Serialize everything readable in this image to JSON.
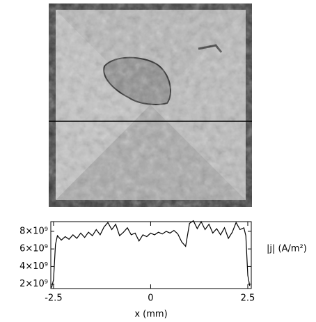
{
  "chart_data": {
    "type": "line",
    "xlabel": "x (mm)",
    "ylabel": "|j| (A/m²)",
    "x": [
      -2.55,
      -2.5,
      -2.45,
      -2.4,
      -2.3,
      -2.2,
      -2.1,
      -2.0,
      -1.9,
      -1.8,
      -1.7,
      -1.6,
      -1.5,
      -1.4,
      -1.3,
      -1.2,
      -1.1,
      -1.0,
      -0.9,
      -0.8,
      -0.7,
      -0.6,
      -0.5,
      -0.4,
      -0.3,
      -0.2,
      -0.1,
      0.0,
      0.1,
      0.2,
      0.3,
      0.4,
      0.5,
      0.6,
      0.7,
      0.8,
      0.9,
      1.0,
      1.1,
      1.2,
      1.3,
      1.4,
      1.5,
      1.6,
      1.7,
      1.8,
      1.9,
      2.0,
      2.1,
      2.2,
      2.3,
      2.4,
      2.45,
      2.5,
      2.55
    ],
    "series": [
      {
        "color": "#000000",
        "values": [
          1600000000.0,
          2500000000.0,
          6500000000.0,
          7500000000.0,
          7000000000.0,
          7400000000.0,
          7100000000.0,
          7600000000.0,
          7200000000.0,
          7800000000.0,
          7300000000.0,
          7900000000.0,
          7500000000.0,
          8200000000.0,
          7600000000.0,
          8500000000.0,
          9000000000.0,
          8200000000.0,
          8800000000.0,
          7500000000.0,
          7900000000.0,
          8400000000.0,
          7600000000.0,
          7800000000.0,
          6900000000.0,
          7600000000.0,
          7400000000.0,
          7800000000.0,
          7600000000.0,
          7900000000.0,
          7700000000.0,
          8000000000.0,
          7800000000.0,
          8100000000.0,
          7700000000.0,
          6800000000.0,
          6300000000.0,
          8900000000.0,
          9200000000.0,
          8300000000.0,
          9100000000.0,
          8200000000.0,
          8800000000.0,
          7800000000.0,
          8300000000.0,
          7600000000.0,
          8400000000.0,
          7200000000.0,
          7900000000.0,
          9000000000.0,
          8200000000.0,
          8400000000.0,
          7500000000.0,
          3000000000.0,
          1800000000.0
        ]
      }
    ],
    "xlim": [
      -2.57,
      2.59
    ],
    "ylim": [
      1500000000.0,
      9100000000.0
    ],
    "xticks": [
      -2.5,
      0,
      2.5
    ],
    "yticks": [
      {
        "value": 2000000000.0,
        "label": "2×10⁹"
      },
      {
        "value": 4000000000.0,
        "label": "4×10⁹"
      },
      {
        "value": 6000000000.0,
        "label": "6×10⁹"
      },
      {
        "value": 8000000000.0,
        "label": "8×10⁹"
      }
    ]
  }
}
